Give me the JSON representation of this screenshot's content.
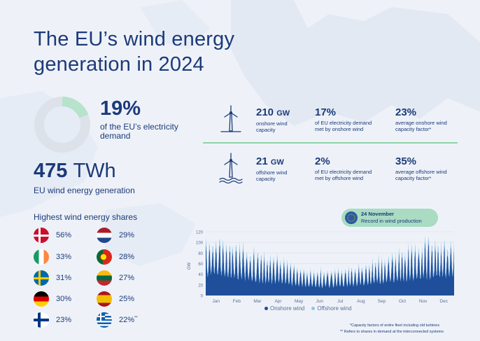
{
  "title": "The EU’s wind energy generation in 2024",
  "share_of_demand": {
    "value": "19%",
    "fraction": 0.19,
    "label": "of the EU’s electricity demand"
  },
  "generation": {
    "value": "475",
    "unit": "TWh",
    "label": "EU wind energy generation"
  },
  "onshore": {
    "capacity": "210",
    "capacity_unit": "GW",
    "capacity_label": "onshore wind capacity",
    "demand_share": "17%",
    "demand_label": "of EU electricity demand met by onshore wind",
    "capacity_factor": "23%",
    "capacity_factor_label": "average onshore wind capacity factor*"
  },
  "offshore": {
    "capacity": "21",
    "capacity_unit": "GW",
    "capacity_label": "offshore wind capacity",
    "demand_share": "2%",
    "demand_label": "of EU electricity demand met by offshore wind",
    "capacity_factor": "35%",
    "capacity_factor_label": "average offshore wind capacity factor*"
  },
  "shares_title": "Highest wind energy shares",
  "shares": [
    {
      "flag": "denmark-flag",
      "value": "56%"
    },
    {
      "flag": "ireland-flag",
      "value": "33%"
    },
    {
      "flag": "sweden-flag",
      "value": "31%"
    },
    {
      "flag": "germany-flag",
      "value": "30%"
    },
    {
      "flag": "finland-flag",
      "value": "23%"
    },
    {
      "flag": "netherlands-flag",
      "value": "29%"
    },
    {
      "flag": "portugal-flag",
      "value": "28%"
    },
    {
      "flag": "lithuania-flag",
      "value": "27%"
    },
    {
      "flag": "spain-flag",
      "value": "25%"
    },
    {
      "flag": "greece-flag",
      "value": "22%",
      "note": "**"
    }
  ],
  "callout": {
    "date": "24 November",
    "text": "Record in wind production"
  },
  "chart_data": {
    "type": "area",
    "ylabel": "GW",
    "ylim": [
      0,
      120
    ],
    "yticks": [
      "0",
      "20",
      "40",
      "60",
      "80",
      "100",
      "120"
    ],
    "categories": [
      "Jan",
      "Feb",
      "Mar",
      "Apr",
      "May",
      "Jun",
      "Jul",
      "Aug",
      "Sep",
      "Oct",
      "Nov",
      "Dec"
    ],
    "series": [
      {
        "name": "Onshore wind",
        "color": "#1f4f9a",
        "monthly_typical_gw": [
          75,
          65,
          50,
          45,
          35,
          30,
          32,
          38,
          45,
          55,
          60,
          70
        ],
        "monthly_peak_gw": [
          110,
          100,
          85,
          75,
          55,
          50,
          50,
          60,
          75,
          88,
          112,
          105
        ]
      },
      {
        "name": "Offshore wind",
        "color": "#8fc4ea",
        "monthly_typical_gw": [
          9,
          8,
          7,
          6,
          4,
          4,
          4,
          5,
          6,
          7,
          8,
          9
        ],
        "monthly_peak_gw": [
          12,
          11,
          10,
          9,
          7,
          6,
          6,
          7,
          9,
          10,
          12,
          12
        ]
      }
    ]
  },
  "footnotes": [
    "*Capacity factors of entire fleet including old turbines",
    "** Refers to shares in demand at the interconnected systems"
  ],
  "colors": {
    "primary": "#1c3a7a",
    "accent_green": "#a9dcc3",
    "onshore": "#1f4f9a",
    "offshore": "#8fc4ea"
  }
}
